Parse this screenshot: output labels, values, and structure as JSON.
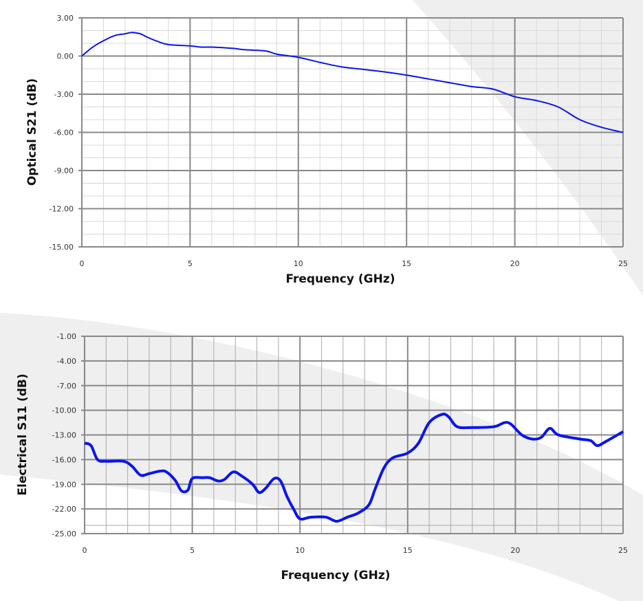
{
  "colors": {
    "line": "#0a14f0",
    "grid_major": "#888888",
    "grid_minor": "#d8d8d8",
    "swoosh": "#efefef"
  },
  "chart_data": [
    {
      "type": "line",
      "xlabel": "Frequency (GHz)",
      "ylabel": "Optical S21 (dB)",
      "xlim": [
        0,
        25
      ],
      "ylim": [
        -15,
        3
      ],
      "xticks": [
        0,
        5,
        10,
        15,
        20,
        25
      ],
      "xtick_labels": [
        "0",
        "5",
        "10",
        "15",
        "20",
        "25"
      ],
      "yticks": [
        3,
        0,
        -3,
        -6,
        -9,
        -12,
        -15
      ],
      "ytick_labels": [
        "3.00",
        "0.00",
        "-3.00",
        "-6.00",
        "-9.00",
        "-12.00",
        "-15.00"
      ],
      "grid": true,
      "series": [
        {
          "name": "Optical S21",
          "x": [
            0,
            0.5,
            1,
            1.5,
            2,
            2.3,
            2.7,
            3,
            3.5,
            4,
            5,
            5.5,
            6,
            7,
            7.5,
            8.5,
            9,
            10,
            11,
            12,
            13,
            14,
            15,
            16,
            17,
            18,
            19,
            20,
            21,
            22,
            23,
            24,
            25
          ],
          "y": [
            0,
            0.7,
            1.2,
            1.6,
            1.75,
            1.85,
            1.75,
            1.5,
            1.15,
            0.9,
            0.8,
            0.7,
            0.7,
            0.6,
            0.5,
            0.4,
            0.15,
            -0.1,
            -0.5,
            -0.85,
            -1.05,
            -1.25,
            -1.5,
            -1.8,
            -2.1,
            -2.4,
            -2.6,
            -3.2,
            -3.5,
            -4.0,
            -5.0,
            -5.6,
            -6.0
          ]
        }
      ]
    },
    {
      "type": "line",
      "xlabel": "Frequency  (GHz)",
      "ylabel": "Electrical S11 (dB)",
      "xlim": [
        0,
        25
      ],
      "ylim": [
        -25,
        -1
      ],
      "xticks": [
        0,
        5,
        10,
        15,
        20,
        25
      ],
      "xtick_labels": [
        "0",
        "5",
        "10",
        "15",
        "20",
        "25"
      ],
      "yticks": [
        -1,
        -4,
        -7,
        -10,
        -13,
        -16,
        -19,
        -22,
        -25
      ],
      "ytick_labels": [
        "-1.00",
        "-4.00",
        "-7.00",
        "-10.00",
        "-13.00",
        "-16.00",
        "-19.00",
        "-22.00",
        "-25.00"
      ],
      "grid": true,
      "series": [
        {
          "name": "Electrical S11",
          "x": [
            0,
            0.3,
            0.6,
            1,
            1.8,
            2.2,
            2.6,
            3,
            3.5,
            3.8,
            4.2,
            4.5,
            4.8,
            5,
            5.5,
            5.8,
            6.2,
            6.5,
            6.9,
            7.3,
            7.8,
            8.1,
            8.4,
            8.8,
            9.1,
            9.4,
            9.7,
            10,
            10.5,
            11.2,
            11.7,
            12.2,
            12.7,
            13.2,
            13.5,
            13.9,
            14.3,
            15,
            15.5,
            16,
            16.6,
            16.9,
            17.3,
            18,
            19,
            19.5,
            19.8,
            20.3,
            20.8,
            21.2,
            21.6,
            22,
            23,
            23.5,
            23.8,
            24.2,
            25
          ],
          "y": [
            -14,
            -14.3,
            -16,
            -16.2,
            -16.2,
            -16.8,
            -17.9,
            -17.7,
            -17.4,
            -17.5,
            -18.5,
            -19.8,
            -19.7,
            -18.3,
            -18.2,
            -18.2,
            -18.6,
            -18.4,
            -17.5,
            -18,
            -19,
            -20,
            -19.5,
            -18.3,
            -18.6,
            -20.5,
            -22,
            -23.2,
            -23,
            -23,
            -23.5,
            -23,
            -22.5,
            -21.5,
            -19.5,
            -17,
            -15.8,
            -15.2,
            -14,
            -11.5,
            -10.5,
            -10.8,
            -12,
            -12.1,
            -12,
            -11.5,
            -11.7,
            -13,
            -13.5,
            -13.3,
            -12.2,
            -13,
            -13.5,
            -13.7,
            -14.3,
            -13.8,
            -12.6
          ]
        }
      ]
    }
  ]
}
